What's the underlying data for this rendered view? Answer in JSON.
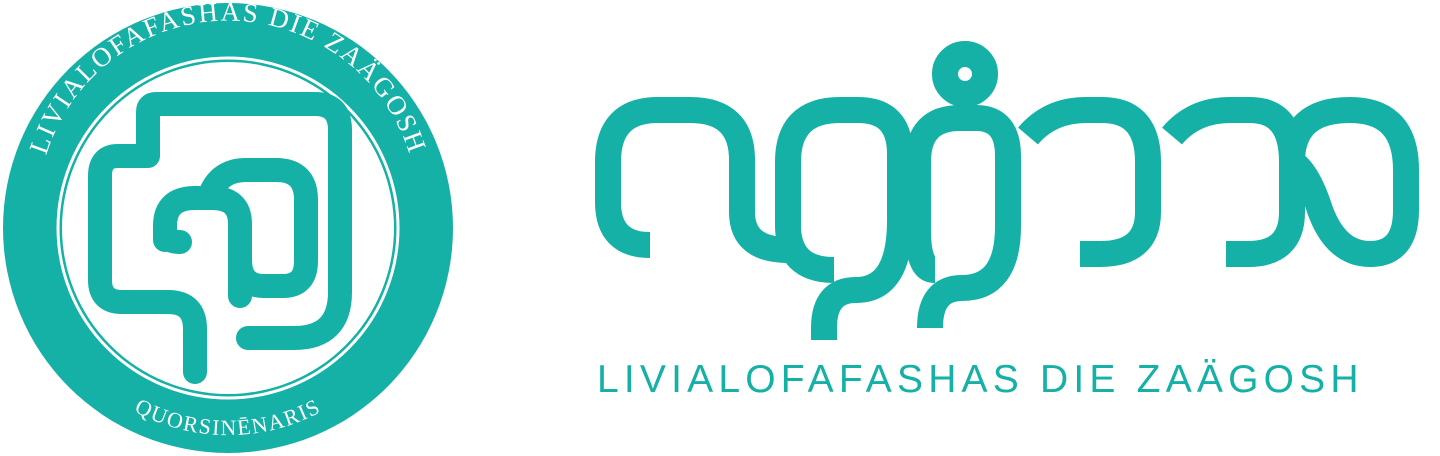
{
  "brand": {
    "name": "LIVIALOFAFASHAS DIE ZAÄGOSH",
    "seal_top_text": "LIVIALOFAFASHAS DIE ZAÄGOSH",
    "seal_bottom_text": "QUORSINĒNARIS",
    "tagline": "LIVIALOFAFASHAS DIE ZAÄGOSH",
    "wordmark_glyph": "script-wordmark"
  },
  "colors": {
    "brand": "#15b0a6",
    "background": "#ffffff"
  }
}
